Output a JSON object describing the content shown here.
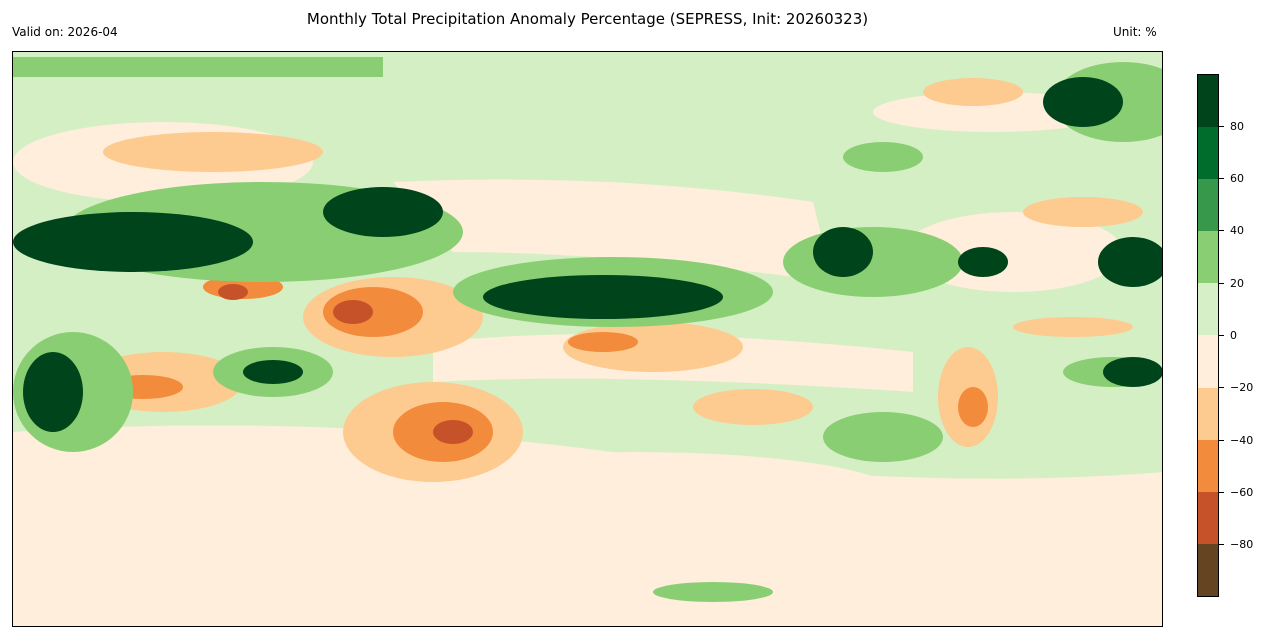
{
  "title": "Monthly Total Precipitation Anomaly Percentage (SEPRESS, Init: 20260323)",
  "valid_on": "Valid on: 2026-04",
  "unit": "Unit: %",
  "colorbar": {
    "range": [
      -100,
      100
    ],
    "colors": [
      "#00441b",
      "#006d2c",
      "#37974a",
      "#8ace73",
      "#d6efc6",
      "#feeedb",
      "#fdca8f",
      "#f28b3b",
      "#c6522a",
      "#654422"
    ],
    "ticks": [
      {
        "value": 80,
        "label": "80"
      },
      {
        "value": 60,
        "label": "60"
      },
      {
        "value": 40,
        "label": "40"
      },
      {
        "value": 20,
        "label": "20"
      },
      {
        "value": 0,
        "label": "0"
      },
      {
        "value": -20,
        "label": "−20"
      },
      {
        "value": -40,
        "label": "−40"
      },
      {
        "value": -60,
        "label": "−60"
      },
      {
        "value": -80,
        "label": "−80"
      }
    ]
  }
}
